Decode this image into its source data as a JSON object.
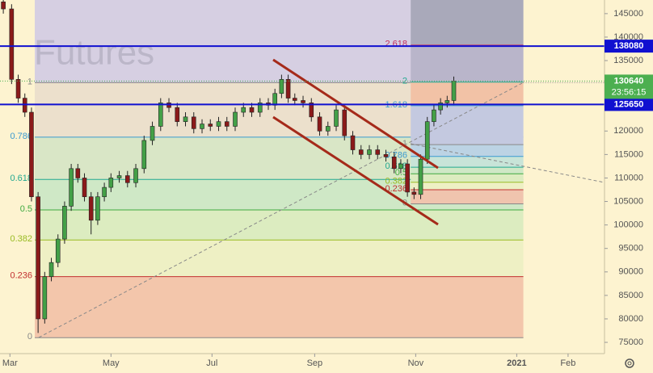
{
  "chart_data": {
    "type": "candlestick",
    "watermark": "Futures",
    "xlim": [
      -6,
      359
    ],
    "xticks": [
      {
        "value": 0,
        "label": "Mar"
      },
      {
        "value": 61,
        "label": "May"
      },
      {
        "value": 122,
        "label": "Jul"
      },
      {
        "value": 184,
        "label": "Sep"
      },
      {
        "value": 245,
        "label": "Nov"
      },
      {
        "value": 306,
        "label": "2021"
      },
      {
        "value": 337,
        "label": "Feb"
      }
    ],
    "ylim": [
      72600,
      147900
    ],
    "yticks": [
      75000,
      80000,
      85000,
      90000,
      95000,
      100000,
      105000,
      110000,
      115000,
      120000,
      125000,
      130000,
      135000,
      140000,
      145000
    ],
    "up_color": "#43a047",
    "down_color": "#8b1a1a",
    "x": [
      -4,
      1,
      5,
      9,
      13,
      17,
      21,
      25,
      29,
      33,
      37,
      41,
      45,
      49,
      53,
      57,
      61,
      66,
      71,
      76,
      81,
      86,
      91,
      96,
      101,
      106,
      111,
      116,
      121,
      126,
      131,
      136,
      141,
      146,
      151,
      156,
      160,
      164,
      168,
      172,
      177,
      182,
      187,
      192,
      197,
      202,
      207,
      212,
      217,
      222,
      227,
      232,
      236,
      240,
      244,
      248,
      252,
      256,
      260,
      264,
      268
    ],
    "open": [
      147500,
      146000,
      131000,
      127000,
      124000,
      106000,
      80000,
      89000,
      92000,
      97000,
      104000,
      112000,
      110000,
      106000,
      101000,
      106000,
      108000,
      110000,
      110500,
      109000,
      112000,
      118000,
      121000,
      126000,
      125000,
      122000,
      123000,
      120500,
      121500,
      121000,
      122000,
      121000,
      124000,
      125000,
      124000,
      126000,
      125500,
      128000,
      131000,
      127000,
      126500,
      126000,
      123000,
      120000,
      121000,
      124500,
      119000,
      116000,
      115000,
      116000,
      115000,
      114500,
      112000,
      113000,
      107000,
      106500,
      114000,
      122000,
      124500,
      126000,
      126500
    ],
    "high": [
      148000,
      147000,
      132000,
      128000,
      125000,
      107000,
      90000,
      93000,
      98000,
      105000,
      113000,
      113000,
      111000,
      107000,
      107000,
      109000,
      111000,
      111500,
      111500,
      113000,
      119000,
      122000,
      127000,
      127000,
      126000,
      124000,
      124000,
      122500,
      122500,
      123000,
      123000,
      125000,
      126000,
      126000,
      127000,
      127000,
      129000,
      132000,
      132000,
      128000,
      127500,
      127000,
      124000,
      122000,
      125500,
      125500,
      120000,
      117000,
      117000,
      117000,
      116000,
      115500,
      114000,
      114000,
      108000,
      115000,
      123000,
      125500,
      127000,
      127500,
      131600
    ],
    "low": [
      145000,
      130000,
      126000,
      123000,
      105000,
      77000,
      79000,
      88000,
      91000,
      96000,
      103000,
      109000,
      105000,
      98000,
      100000,
      105000,
      107000,
      109000,
      108000,
      108000,
      111000,
      117000,
      120000,
      124000,
      121000,
      121000,
      119500,
      119500,
      120000,
      120000,
      120000,
      120000,
      123000,
      123000,
      123000,
      124500,
      124500,
      127000,
      126000,
      125500,
      125000,
      122000,
      119000,
      119000,
      120000,
      118000,
      115000,
      114000,
      114000,
      114000,
      113500,
      111000,
      111000,
      106000,
      105500,
      105500,
      113000,
      121000,
      123500,
      125000,
      125500
    ],
    "close": [
      146000,
      131000,
      127000,
      124000,
      106000,
      80000,
      89000,
      92000,
      97000,
      104000,
      112000,
      110000,
      106000,
      101000,
      106000,
      108000,
      110000,
      110500,
      109000,
      112000,
      118000,
      121000,
      126000,
      125000,
      122000,
      123000,
      120500,
      121500,
      121000,
      122000,
      121000,
      124000,
      125000,
      124000,
      126000,
      125500,
      128000,
      131000,
      127000,
      126500,
      126000,
      123000,
      120000,
      121000,
      124500,
      119000,
      116000,
      115000,
      116000,
      115000,
      114500,
      112000,
      113000,
      107000,
      106500,
      114000,
      122000,
      124500,
      126000,
      126500,
      130600
    ],
    "fib_left": {
      "x_range": [
        15,
        310
      ],
      "top_color": "#d6cfe2",
      "levels": [
        {
          "level": 1,
          "price": 130300,
          "color": "#888888"
        },
        {
          "level": 0.786,
          "price": 118700,
          "color": "#3a9ad0"
        },
        {
          "level": 0.618,
          "price": 109700,
          "color": "#22a890"
        },
        {
          "level": 0.5,
          "price": 103200,
          "color": "#3faa3f"
        },
        {
          "level": 0.382,
          "price": 96800,
          "color": "#99bb22"
        },
        {
          "level": 0.236,
          "price": 89000,
          "color": "#c23030"
        },
        {
          "level": 0,
          "price": 76000,
          "color": "#888888"
        }
      ],
      "band_colors": [
        "#ece0cc",
        "#d9e6c6",
        "#cfe8c6",
        "#dcecc0",
        "#eef0c4",
        "#f3c6ab"
      ]
    },
    "fib_right": {
      "x_range": [
        242,
        310
      ],
      "top_color": "#a9a9ba",
      "levels": [
        {
          "level": 2.618,
          "price": 138300,
          "color": "#c23060"
        },
        {
          "level": 2,
          "price": 130400,
          "color": "#22a890"
        },
        {
          "level": 1.618,
          "price": 125400,
          "color": "#3a9ad0"
        },
        {
          "level": 1,
          "price": 117100,
          "color": "#888888"
        },
        {
          "level": 0.786,
          "price": 114600,
          "color": "#3a9ad0"
        },
        {
          "level": 0.618,
          "price": 112300,
          "color": "#22a890"
        },
        {
          "level": 0.5,
          "price": 110900,
          "color": "#3faa3f"
        },
        {
          "level": 0.382,
          "price": 109100,
          "color": "#99bb22"
        },
        {
          "level": 0.236,
          "price": 107500,
          "color": "#c23030"
        },
        {
          "level": 0,
          "price": 104500,
          "color": "#888888"
        }
      ],
      "band_colors": [
        "#b9b5ca",
        "#f2c2a6",
        "#c4c9e0",
        "#bcd3e4",
        "#c8e4d8",
        "#cfe8c6",
        "#dcecc0",
        "#eef0c4",
        "#f0c4ae"
      ]
    },
    "hlines": [
      {
        "price": 138080,
        "color": "#1010d0"
      },
      {
        "price": 125650,
        "color": "#1010d0"
      }
    ],
    "last_price": 130640,
    "last_price_color": "#4caf50",
    "countdown": "23:56:15"
  }
}
